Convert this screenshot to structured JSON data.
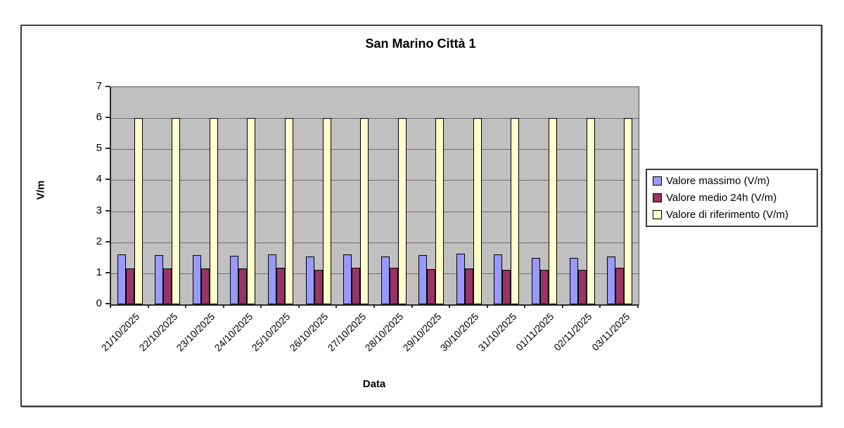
{
  "chart_data": {
    "type": "bar",
    "title": "San Marino Città 1",
    "xlabel": "Data",
    "ylabel": "V/m",
    "ylim": [
      0,
      7
    ],
    "ytick_step": 1,
    "grid": true,
    "legend_position": "right",
    "plot_background": "#c0c0c0",
    "categories": [
      "21/10/2025",
      "22/10/2025",
      "23/10/2025",
      "24/10/2025",
      "25/10/2025",
      "26/10/2025",
      "27/10/2025",
      "28/10/2025",
      "29/10/2025",
      "30/10/2025",
      "31/10/2025",
      "01/11/2025",
      "02/11/2025",
      "03/11/2025"
    ],
    "series": [
      {
        "name": "Valore massimo (V/m)",
        "color": "#9999ff",
        "values": [
          1.6,
          1.58,
          1.58,
          1.57,
          1.6,
          1.55,
          1.6,
          1.55,
          1.58,
          1.63,
          1.62,
          1.5,
          1.5,
          1.55
        ]
      },
      {
        "name": "Valore medio 24h (V/m)",
        "color": "#993366",
        "values": [
          1.15,
          1.15,
          1.15,
          1.15,
          1.17,
          1.1,
          1.17,
          1.17,
          1.13,
          1.15,
          1.1,
          1.12,
          1.12,
          1.17
        ]
      },
      {
        "name": "Valore di riferimento (V/m)",
        "color": "#ffffcc",
        "values": [
          6,
          6,
          6,
          6,
          6,
          6,
          6,
          6,
          6,
          6,
          6,
          6,
          6,
          6
        ]
      }
    ]
  }
}
